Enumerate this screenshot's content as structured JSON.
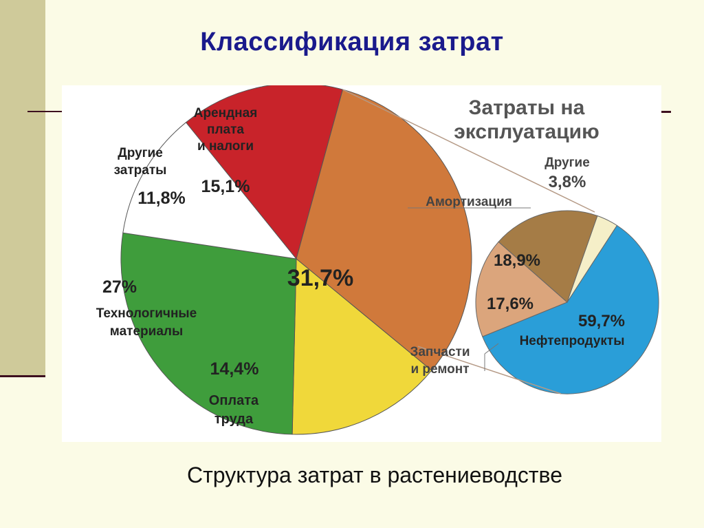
{
  "slide": {
    "title": "Классификация затрат",
    "caption": "Структура затрат в растениеводстве"
  },
  "chart_data": [
    {
      "type": "pie",
      "series": [
        {
          "label_lines": [
            "Арендная",
            "плата",
            "и налоги"
          ],
          "value": 15.1,
          "value_text": "15,1%",
          "color": "#c8232a"
        },
        {
          "label_lines": [
            "Затраты на",
            "эксплуатацию"
          ],
          "value": 31.7,
          "value_text": "31,7%",
          "color": "#d0793b"
        },
        {
          "label_lines": [
            "Оплата",
            "труда"
          ],
          "value": 14.4,
          "value_text": "14,4%",
          "color": "#f0d83a"
        },
        {
          "label_lines": [
            "Технологичные",
            "материалы"
          ],
          "value": 27.0,
          "value_text": "27%",
          "color": "#3f9d3c"
        },
        {
          "label_lines": [
            "Другие",
            "затраты"
          ],
          "value": 11.8,
          "value_text": "11,8%",
          "color": "#ffffff"
        }
      ]
    },
    {
      "type": "pie",
      "series": [
        {
          "label_lines": [
            "Нефтепродукты"
          ],
          "value": 59.7,
          "value_text": "59,7%",
          "color": "#2a9ed8"
        },
        {
          "label_lines": [
            "Запчасти",
            "и ремонт"
          ],
          "value": 17.6,
          "value_text": "17,6%",
          "color": "#dba57c"
        },
        {
          "label_lines": [
            "Амортизация"
          ],
          "value": 18.9,
          "value_text": "18,9%",
          "color": "#a57c46"
        },
        {
          "label_lines": [
            "Другие"
          ],
          "value": 3.8,
          "value_text": "3,8%",
          "color": "#f5efc8"
        }
      ]
    }
  ]
}
